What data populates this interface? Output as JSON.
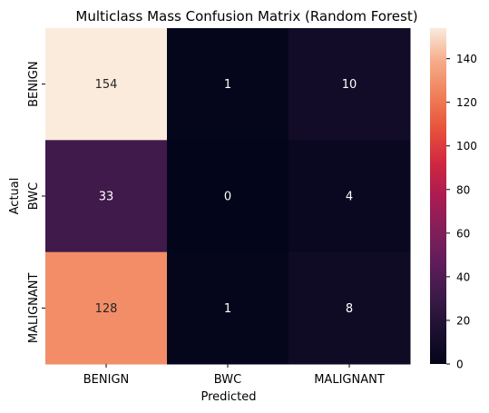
{
  "chart_data": {
    "type": "heatmap",
    "title": "Multiclass Mass Confusion Matrix (Random Forest)",
    "xlabel": "Predicted",
    "ylabel": "Actual",
    "x_categories": [
      "BENIGN",
      "BWC",
      "MALIGNANT"
    ],
    "y_categories": [
      "BENIGN",
      "BWC",
      "MALIGNANT"
    ],
    "values": [
      [
        154,
        1,
        10
      ],
      [
        33,
        0,
        4
      ],
      [
        128,
        1,
        8
      ]
    ],
    "colorbar": {
      "range": [
        0,
        154
      ],
      "ticks": [
        0,
        20,
        40,
        60,
        80,
        100,
        120,
        140
      ]
    },
    "colormap": "rocket"
  }
}
